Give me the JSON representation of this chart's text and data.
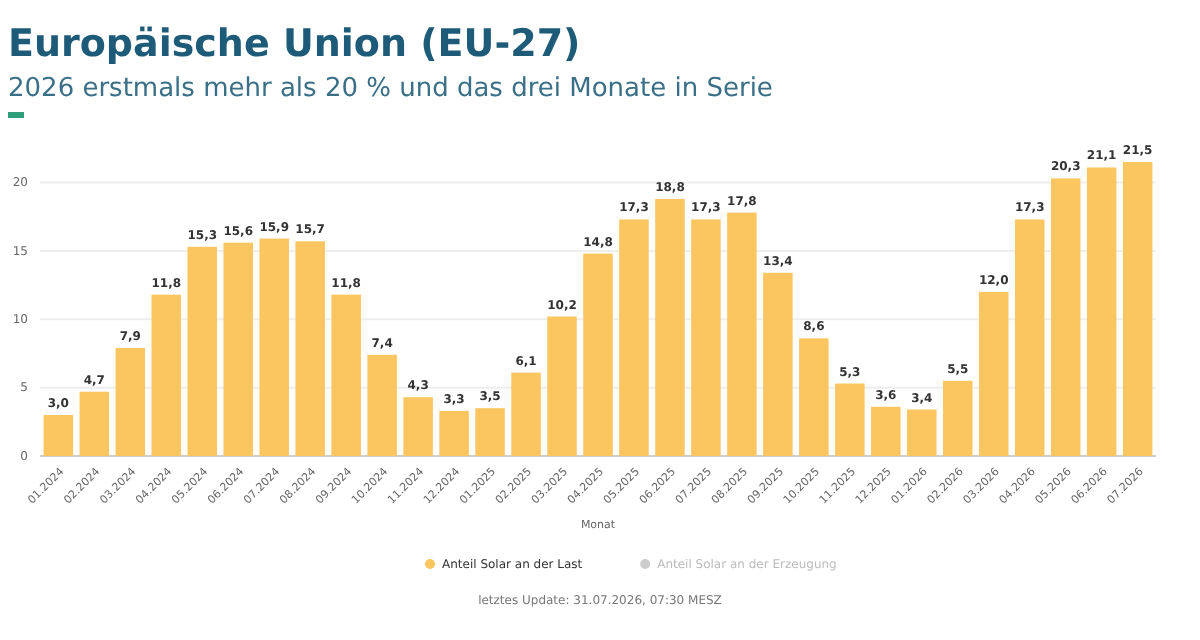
{
  "chart_data": {
    "type": "bar",
    "title": "Europäische Union (EU-27)",
    "subtitle": "2026 erstmals mehr als 20 % und das drei Monate in Serie",
    "xlabel": "Monat",
    "categories": [
      "01.2024",
      "02.2024",
      "03.2024",
      "04.2024",
      "05.2024",
      "06.2024",
      "07.2024",
      "08.2024",
      "09.2024",
      "10.2024",
      "11.2024",
      "12.2024",
      "01.2025",
      "02.2025",
      "03.2025",
      "04.2025",
      "05.2025",
      "06.2025",
      "07.2025",
      "08.2025",
      "09.2025",
      "10.2025",
      "11.2025",
      "12.2025",
      "01.2026",
      "02.2026",
      "03.2026",
      "04.2026",
      "05.2026",
      "06.2026",
      "07.2026"
    ],
    "series": [
      {
        "name": "Anteil Solar an der Last",
        "color": "#fbc55f",
        "values": [
          3.0,
          4.7,
          7.9,
          11.8,
          15.3,
          15.6,
          15.9,
          15.7,
          11.8,
          7.4,
          4.3,
          3.3,
          3.5,
          6.1,
          10.2,
          14.8,
          17.3,
          18.8,
          17.3,
          17.8,
          13.4,
          8.6,
          5.3,
          3.6,
          3.4,
          5.5,
          12.0,
          17.3,
          20.3,
          21.1,
          21.5
        ],
        "value_labels": [
          "3,0",
          "4,7",
          "7,9",
          "11,8",
          "15,3",
          "15,6",
          "15,9",
          "15,7",
          "11,8",
          "7,4",
          "4,3",
          "3,3",
          "3,5",
          "6,1",
          "10,2",
          "14,8",
          "17,3",
          "18,8",
          "17,3",
          "17,8",
          "13,4",
          "8,6",
          "5,3",
          "3,6",
          "3,4",
          "5,5",
          "12,0",
          "17,3",
          "20,3",
          "21,1",
          "21,5"
        ]
      },
      {
        "name": "Anteil Solar an der Erzeugung",
        "color": "#cccccc",
        "values": [
          null,
          null,
          null,
          null,
          null,
          null,
          null,
          null,
          null,
          null,
          null,
          null,
          null,
          null,
          null,
          null,
          null,
          null,
          null,
          null,
          null,
          null,
          null,
          null,
          null,
          null,
          null,
          null,
          null,
          null,
          null
        ]
      }
    ],
    "ylim": [
      0,
      21.5
    ],
    "yticks": [
      0,
      5,
      10,
      15,
      20
    ],
    "grid": "y",
    "legend": "bottom",
    "annotations": [
      "letztes Update: 31.07.2026, 07:30 MESZ"
    ]
  }
}
